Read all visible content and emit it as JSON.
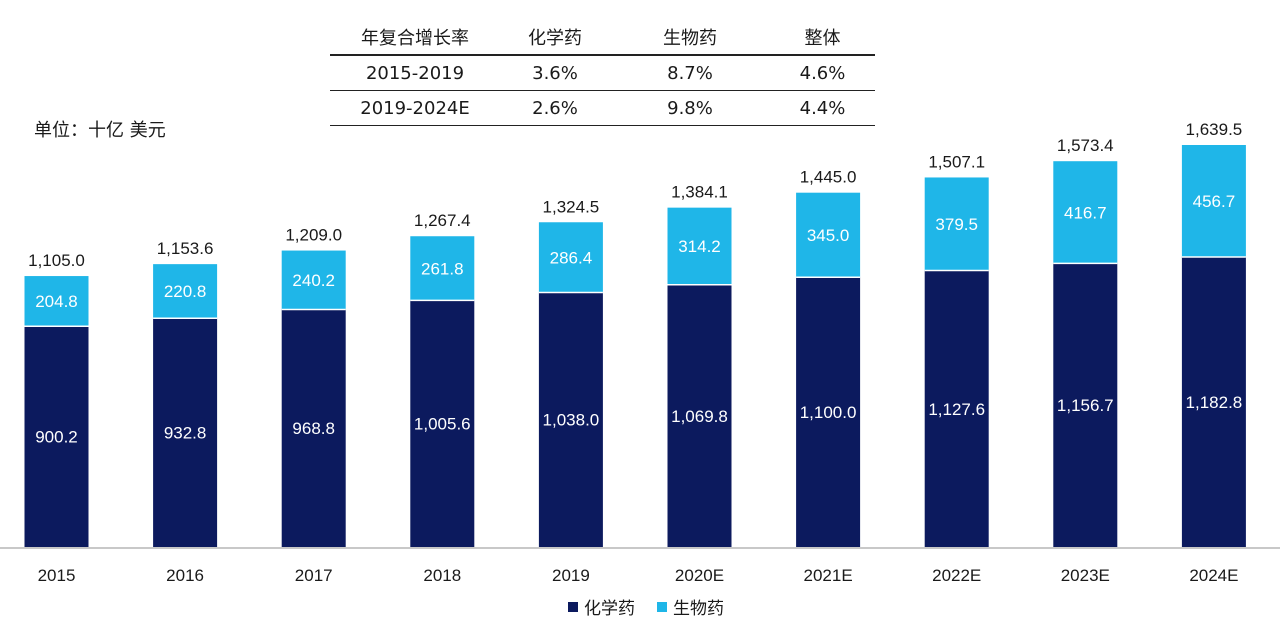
{
  "unit_label": "单位：十亿 美元",
  "cagr_table": {
    "headers": [
      "年复合增长率",
      "化学药",
      "生物药",
      "整体"
    ],
    "rows": [
      [
        "2015-2019",
        "3.6%",
        "8.7%",
        "4.6%"
      ],
      [
        "2019-2024E",
        "2.6%",
        "9.8%",
        "4.4%"
      ]
    ]
  },
  "legend": {
    "chem_label": "化学药",
    "bio_label": "生物药"
  },
  "colors": {
    "chem": "#0c1a5e",
    "bio": "#1fb6e8"
  },
  "chart_data": {
    "type": "bar",
    "stacked": true,
    "categories": [
      "2015",
      "2016",
      "2017",
      "2018",
      "2019",
      "2020E",
      "2021E",
      "2022E",
      "2023E",
      "2024E"
    ],
    "series": [
      {
        "name": "化学药",
        "values": [
          900.2,
          932.8,
          968.8,
          1005.6,
          1038.0,
          1069.8,
          1100.0,
          1127.6,
          1156.7,
          1182.8
        ],
        "labels": [
          "900.2",
          "932.8",
          "968.8",
          "1,005.6",
          "1,038.0",
          "1,069.8",
          "1,100.0",
          "1,127.6",
          "1,156.7",
          "1,182.8"
        ]
      },
      {
        "name": "生物药",
        "values": [
          204.8,
          220.8,
          240.2,
          261.8,
          286.4,
          314.2,
          345.0,
          379.5,
          416.7,
          456.7
        ],
        "labels": [
          "204.8",
          "220.8",
          "240.2",
          "261.8",
          "286.4",
          "314.2",
          "345.0",
          "379.5",
          "416.7",
          "456.7"
        ]
      }
    ],
    "totals": [
      1105.0,
      1153.6,
      1209.0,
      1267.4,
      1324.5,
      1384.1,
      1445.0,
      1507.1,
      1573.4,
      1639.5
    ],
    "total_labels": [
      "1,105.0",
      "1,153.6",
      "1,209.0",
      "1,267.4",
      "1,324.5",
      "1,384.1",
      "1,445.0",
      "1,507.1",
      "1,573.4",
      "1,639.5"
    ],
    "ylim": [
      0,
      1639.5
    ],
    "grid": false,
    "legend_position": "bottom"
  }
}
